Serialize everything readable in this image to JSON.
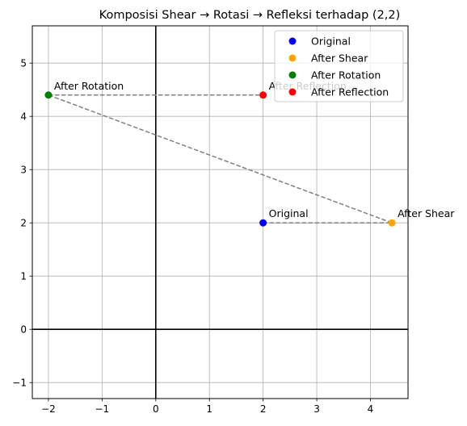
{
  "chart_data": {
    "type": "scatter",
    "title": "Komposisi Shear → Rotasi → Refleksi terhadap (2,2)",
    "xlabel": "",
    "ylabel": "",
    "xlim": [
      -2.3,
      4.7
    ],
    "ylim": [
      -1.3,
      5.7
    ],
    "xticks": [
      -2,
      -1,
      0,
      1,
      2,
      3,
      4
    ],
    "yticks": [
      -1,
      0,
      1,
      2,
      3,
      4,
      5
    ],
    "grid": true,
    "legend_position": "top-right",
    "series": [
      {
        "name": "Original",
        "color": "#0000ff",
        "x": 2,
        "y": 2,
        "annotation": "Original"
      },
      {
        "name": "After Shear",
        "color": "#ffa500",
        "x": 4.4,
        "y": 2,
        "annotation": "After Shear"
      },
      {
        "name": "After Rotation",
        "color": "#008000",
        "x": -2,
        "y": 4.4,
        "annotation": "After Rotation"
      },
      {
        "name": "After Reflection",
        "color": "#ff0000",
        "x": 2,
        "y": 4.4,
        "annotation": "After Reflection"
      }
    ],
    "path_color": "#808080"
  }
}
